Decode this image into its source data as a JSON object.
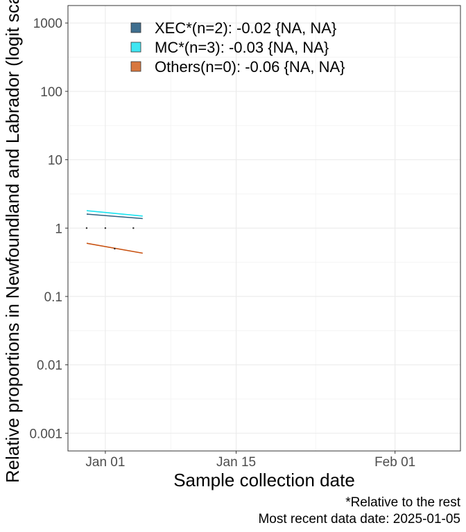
{
  "chart_data": {
    "type": "line",
    "xlabel": "Sample collection date",
    "ylabel": "Relative proportions in Newfoundland and Labrador (logit scale)",
    "y_scale": "log10",
    "ylim": [
      0.00055,
      1800
    ],
    "xlim": [
      "2024-12-28",
      "2025-02-08"
    ],
    "x_ticks": [
      {
        "date": "2025-01-01",
        "label": "Jan 01"
      },
      {
        "date": "2025-01-15",
        "label": "Jan 15"
      },
      {
        "date": "2025-02-01",
        "label": "Feb 01"
      }
    ],
    "y_ticks": [
      {
        "value": 1000,
        "label": "1000"
      },
      {
        "value": 100,
        "label": "100"
      },
      {
        "value": 10,
        "label": "10"
      },
      {
        "value": 1,
        "label": "1"
      },
      {
        "value": 0.1,
        "label": "0.1"
      },
      {
        "value": 0.01,
        "label": "0.01"
      },
      {
        "value": 0.001,
        "label": "0.001"
      }
    ],
    "grid": true,
    "legend_position": "top-left",
    "series": [
      {
        "name": "XEC*(n=2): -0.02 {NA, NA}",
        "color": "#2d5f7f",
        "legend_fill": "#3f6f8f",
        "line": [
          {
            "x": "2024-12-30",
            "y": 1.6
          },
          {
            "x": "2025-01-05",
            "y": 1.38
          }
        ]
      },
      {
        "name": "MC*(n=3): -0.03 {NA, NA}",
        "color": "#19e3f0",
        "legend_fill": "#3fe6f2",
        "line": [
          {
            "x": "2024-12-30",
            "y": 1.8
          },
          {
            "x": "2025-01-05",
            "y": 1.5
          }
        ]
      },
      {
        "name": "Others(n=0): -0.06 {NA, NA}",
        "color": "#c8500f",
        "legend_fill": "#d8773f",
        "line": [
          {
            "x": "2024-12-30",
            "y": 0.6
          },
          {
            "x": "2025-01-05",
            "y": 0.43
          }
        ]
      }
    ],
    "points": [
      {
        "x": "2024-12-30",
        "y": 1
      },
      {
        "x": "2025-01-01",
        "y": 1
      },
      {
        "x": "2025-01-02",
        "y": 0.5
      },
      {
        "x": "2025-01-04",
        "y": 1
      }
    ],
    "caption": [
      "*Relative to the rest",
      "Most recent data date: 2025-01-05"
    ]
  }
}
